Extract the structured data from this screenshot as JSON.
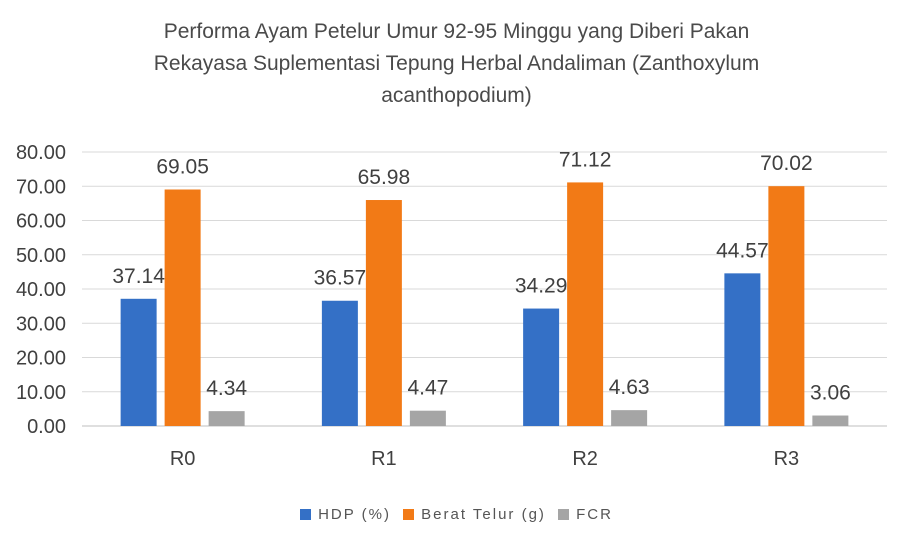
{
  "chart_data": {
    "type": "bar",
    "title_lines": [
      "Performa Ayam Petelur Umur 92-95 Minggu yang Diberi Pakan",
      "Rekayasa Suplementasi Tepung Herbal Andaliman (Zanthoxylum",
      "acanthopodium)"
    ],
    "categories": [
      "R0",
      "R1",
      "R2",
      "R3"
    ],
    "series": [
      {
        "name": "HDP (%)",
        "values": [
          37.14,
          36.57,
          34.29,
          44.57
        ],
        "color": "#3470c6"
      },
      {
        "name": "Berat Telur (g)",
        "values": [
          69.05,
          65.98,
          71.12,
          70.02
        ],
        "color": "#f27a16"
      },
      {
        "name": "FCR",
        "values": [
          4.34,
          4.47,
          4.63,
          3.06
        ],
        "color": "#a5a5a5"
      }
    ],
    "data_labels": [
      [
        "37.14",
        "36.57",
        "34.29",
        "44.57"
      ],
      [
        "69.05",
        "65.98",
        "71.12",
        "70.02"
      ],
      [
        "4.34",
        "4.47",
        "4.63",
        "3.06"
      ]
    ],
    "y_ticks": [
      "0.00",
      "10.00",
      "20.00",
      "30.00",
      "40.00",
      "50.00",
      "60.00",
      "70.00",
      "80.00"
    ],
    "ylim": [
      0,
      80
    ],
    "grid": true,
    "legend_position": "bottom"
  }
}
